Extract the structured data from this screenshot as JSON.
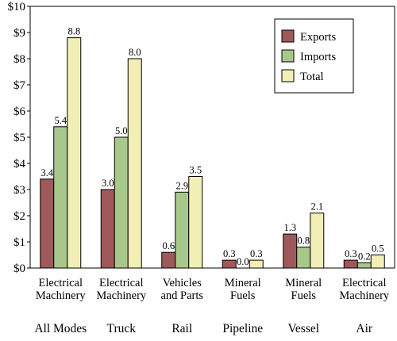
{
  "chart_data": {
    "type": "bar",
    "categories": [
      "Electrical\nMachinery",
      "Electrical\nMachinery",
      "Vehicles\nand Parts",
      "Mineral\nFuels",
      "Mineral\nFuels",
      "Electrical\nMachinery"
    ],
    "groups": [
      "All Modes",
      "Truck",
      "Rail",
      "Pipeline",
      "Vessel",
      "Air"
    ],
    "series": [
      {
        "name": "Exports",
        "color": "#a0595b",
        "values": [
          3.4,
          3.0,
          0.6,
          0.3,
          1.3,
          0.3
        ],
        "labels": [
          "3.4",
          "3.0",
          "0.6",
          "0.3",
          "1.3",
          "0.3"
        ]
      },
      {
        "name": "Imports",
        "color": "#a8c88b",
        "values": [
          5.4,
          5.0,
          2.9,
          0.0,
          0.8,
          0.2
        ],
        "labels": [
          "5.4",
          "5.0",
          "2.9",
          "0.0",
          "0.8",
          "0.2"
        ]
      },
      {
        "name": "Total",
        "color": "#f1efb6",
        "values": [
          8.8,
          8.0,
          3.5,
          0.3,
          2.1,
          0.5
        ],
        "labels": [
          "8.8",
          "8.0",
          "3.5",
          "0.3",
          "2.1",
          "0.5"
        ]
      }
    ],
    "y_ticks": [
      "$0",
      "$1",
      "$2",
      "$3",
      "$4",
      "$5",
      "$6",
      "$7",
      "$8",
      "$9",
      "$10"
    ],
    "ylim": [
      0,
      10
    ],
    "grid": false,
    "legend": "top-right",
    "title": "",
    "xlabel": "",
    "ylabel": ""
  }
}
